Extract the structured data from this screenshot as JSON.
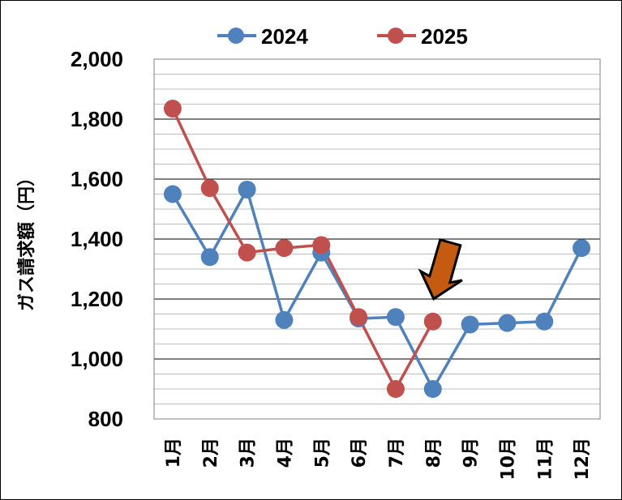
{
  "chart_data": {
    "type": "line",
    "categories": [
      "1月",
      "2月",
      "3月",
      "4月",
      "5月",
      "6月",
      "7月",
      "8月",
      "9月",
      "10月",
      "11月",
      "12月"
    ],
    "series": [
      {
        "name": "2024",
        "color": "#4F81BD",
        "values": [
          1550,
          1340,
          1565,
          1130,
          1355,
          1135,
          1140,
          900,
          1115,
          1120,
          1125,
          1370
        ]
      },
      {
        "name": "2025",
        "color": "#C0504D",
        "values": [
          1835,
          1570,
          1355,
          1370,
          1380,
          1140,
          900,
          1125,
          null,
          null,
          null,
          null
        ]
      }
    ],
    "ylabel": "ガス請求額（円）",
    "ylim": [
      800,
      2000
    ],
    "yticks": [
      800,
      1000,
      1200,
      1400,
      1600,
      1800,
      2000
    ],
    "ytick_labels": [
      "800",
      "1,000",
      "1,200",
      "1,400",
      "1,600",
      "1,800",
      "2,000"
    ],
    "grid": "major and minor horizontal",
    "legend_position": "top",
    "annotation": {
      "type": "arrow",
      "points_to": "8月",
      "series": "2025",
      "color": "#C55A11"
    }
  }
}
